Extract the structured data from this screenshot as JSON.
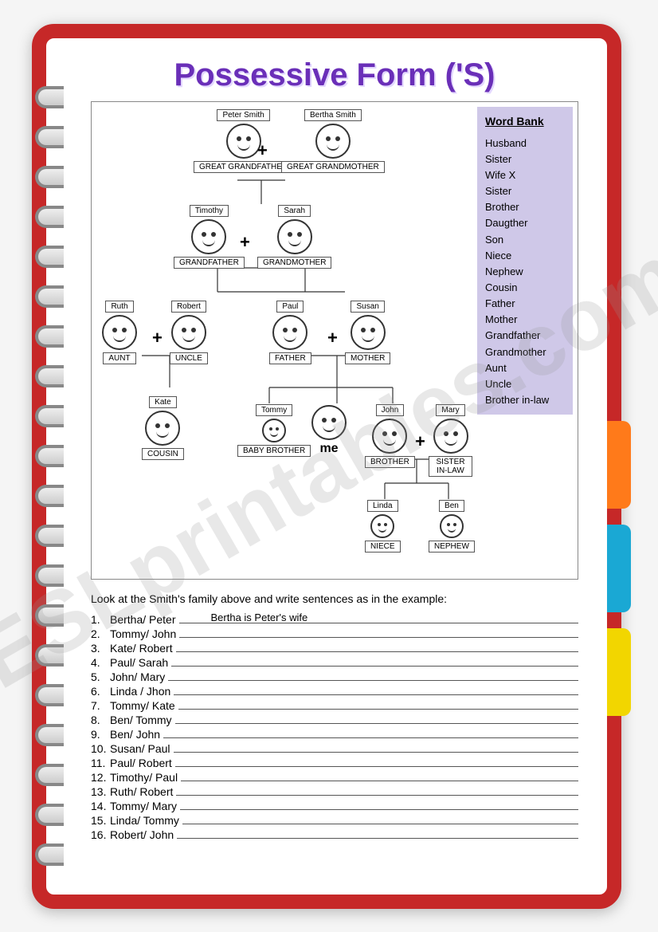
{
  "title": "Possessive Form ('S)",
  "watermark": "ESLprintables.com",
  "wordbank": {
    "heading": "Word Bank",
    "items": [
      "Husband",
      "Sister",
      "Wife X",
      "Sister",
      "Brother",
      "Daugther",
      "Son",
      "Niece",
      "Nephew",
      "Cousin",
      "Father",
      "Mother",
      "Grandfather",
      "Grandmother",
      "Aunt",
      "Uncle",
      "Brother in-law"
    ]
  },
  "tree": {
    "people": {
      "peter": {
        "name": "Peter Smith",
        "role": "GREAT GRANDFATHER"
      },
      "bertha": {
        "name": "Bertha Smith",
        "role": "GREAT GRANDMOTHER"
      },
      "timothy": {
        "name": "Timothy",
        "role": "GRANDFATHER"
      },
      "sarah": {
        "name": "Sarah",
        "role": "GRANDMOTHER"
      },
      "ruth": {
        "name": "Ruth",
        "role": "AUNT"
      },
      "robert": {
        "name": "Robert",
        "role": "UNCLE"
      },
      "paul": {
        "name": "Paul",
        "role": "FATHER"
      },
      "susan": {
        "name": "Susan",
        "role": "MOTHER"
      },
      "kate": {
        "name": "Kate",
        "role": "COUSIN"
      },
      "tommy": {
        "name": "Tommy",
        "role": "BABY BROTHER"
      },
      "me": {
        "name": "",
        "role": "me"
      },
      "john": {
        "name": "John",
        "role": "BROTHER"
      },
      "mary": {
        "name": "Mary",
        "role": "SISTER IN-LAW"
      },
      "linda": {
        "name": "Linda",
        "role": "NIECE"
      },
      "ben": {
        "name": "Ben",
        "role": "NEPHEW"
      }
    }
  },
  "instructions": "Look at the Smith's family above and write sentences as in the example:",
  "questions": [
    {
      "n": "1.",
      "pair": "Bertha/ Peter",
      "answer": "Bertha is Peter's wife"
    },
    {
      "n": "2.",
      "pair": "Tommy/ John",
      "answer": ""
    },
    {
      "n": "3.",
      "pair": "Kate/ Robert",
      "answer": ""
    },
    {
      "n": "4.",
      "pair": "Paul/ Sarah",
      "answer": ""
    },
    {
      "n": "5.",
      "pair": "John/ Mary",
      "answer": ""
    },
    {
      "n": "6.",
      "pair": "Linda / Jhon",
      "answer": ""
    },
    {
      "n": "7.",
      "pair": "Tommy/ Kate",
      "answer": ""
    },
    {
      "n": "8.",
      "pair": "Ben/ Tommy",
      "answer": ""
    },
    {
      "n": "9.",
      "pair": "Ben/ John",
      "answer": ""
    },
    {
      "n": "10.",
      "pair": "Susan/ Paul",
      "answer": ""
    },
    {
      "n": "11.",
      "pair": "Paul/ Robert",
      "answer": ""
    },
    {
      "n": "12.",
      "pair": "Timothy/ Paul",
      "answer": ""
    },
    {
      "n": "13.",
      "pair": "Ruth/ Robert",
      "answer": ""
    },
    {
      "n": "14.",
      "pair": "Tommy/ Mary",
      "answer": ""
    },
    {
      "n": "15.",
      "pair": "Linda/ Tommy",
      "answer": ""
    },
    {
      "n": "16.",
      "pair": "Robert/ John",
      "answer": ""
    }
  ],
  "tabs": {
    "colors": [
      "#ff7a1a",
      "#1aa8d4",
      "#f2d600"
    ]
  }
}
